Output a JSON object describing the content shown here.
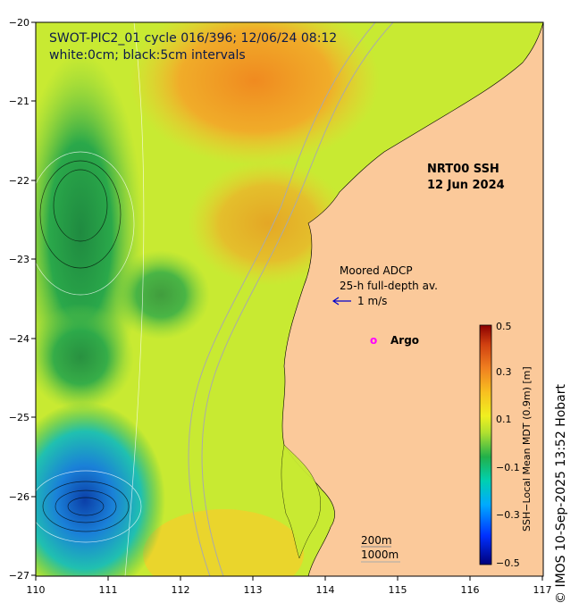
{
  "header": {
    "title": "SWOT-PIC2_01 cycle 016/396; 12/06/24 08:12",
    "subtitle": "white:0cm; black:5cm intervals"
  },
  "product": {
    "name": "NRT00 SSH",
    "date": "12 Jun 2024"
  },
  "adcp": {
    "title": "Moored ADCP",
    "subtitle": "25-h full-depth av.",
    "scale": "1 m/s"
  },
  "argo": {
    "marker": "o",
    "label": "Argo"
  },
  "isobaths": {
    "shallow": "200m",
    "deep": "1000m"
  },
  "colorbar": {
    "title": "SSH−Local Mean MDT (0.9m) [m]",
    "ticks": [
      "0.5",
      "0.3",
      "0.1",
      "−0.1",
      "−0.3",
      "−0.5"
    ],
    "range": [
      -0.5,
      0.5
    ]
  },
  "axes": {
    "x_ticks": [
      "110",
      "111",
      "112",
      "113",
      "114",
      "115",
      "116",
      "117"
    ],
    "y_ticks": [
      "−20",
      "−21",
      "−22",
      "−23",
      "−24",
      "−25",
      "−26",
      "−27"
    ],
    "lon_range": [
      110,
      117
    ],
    "lat_range": [
      -27,
      -20
    ]
  },
  "credit": "© IMOS 10-Sep-2025 13:52 Hobart",
  "colors": {
    "land": "#fbc99a",
    "ocean_base": "#c8ea32",
    "ocean_high": "#f5a020",
    "ocean_low": "#22b04a",
    "trough": "#1a64c8",
    "text_dark": "#0b1a4a",
    "argo": "#ff00ff",
    "adcp_arrow": "#0000cc"
  }
}
